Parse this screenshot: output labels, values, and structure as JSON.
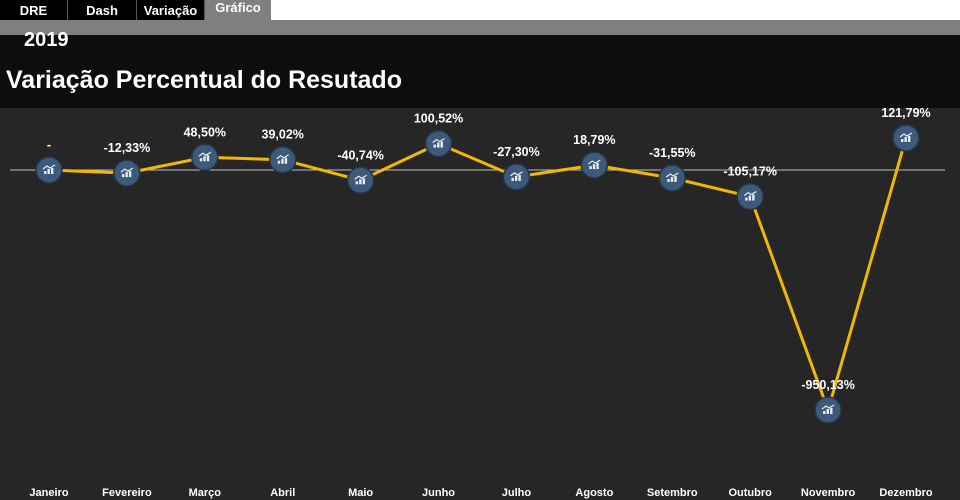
{
  "tabs": [
    {
      "label": "DRE",
      "active": false
    },
    {
      "label": "Dash",
      "active": false
    },
    {
      "label": "Variação",
      "active": false
    },
    {
      "label": "Gráfico",
      "active": true
    }
  ],
  "header": {
    "year": "2019",
    "title": "Variação Percentual do Resutado"
  },
  "colors": {
    "line": "#f2b705",
    "marker": "#3d5a7a",
    "background": "#262626",
    "header": "#0d0d0d"
  },
  "chart_data": {
    "type": "line",
    "title": "Variação Percentual do Resutado",
    "categories": [
      "Janeiro",
      "Fevereiro",
      "Março",
      "Abril",
      "Maio",
      "Junho",
      "Julho",
      "Agosto",
      "Setembro",
      "Outubro",
      "Novembro",
      "Dezembro"
    ],
    "series": [
      {
        "values": [
          0,
          -12.33,
          48.5,
          39.02,
          -40.74,
          100.52,
          -27.3,
          18.79,
          -31.55,
          -105.17,
          -950.13,
          121.79
        ],
        "labels": [
          "-",
          "-12,33%",
          "48,50%",
          "39,02%",
          "-40,74%",
          "100,52%",
          "-27,30%",
          "18,79%",
          "-31,55%",
          "-105,17%",
          "-950,13%",
          "121,79%"
        ]
      }
    ],
    "xlabel": "",
    "ylabel": "",
    "ylim": [
      -1200,
      200
    ],
    "grid": false,
    "legend": "none",
    "marker_icon": "chart-icon"
  }
}
